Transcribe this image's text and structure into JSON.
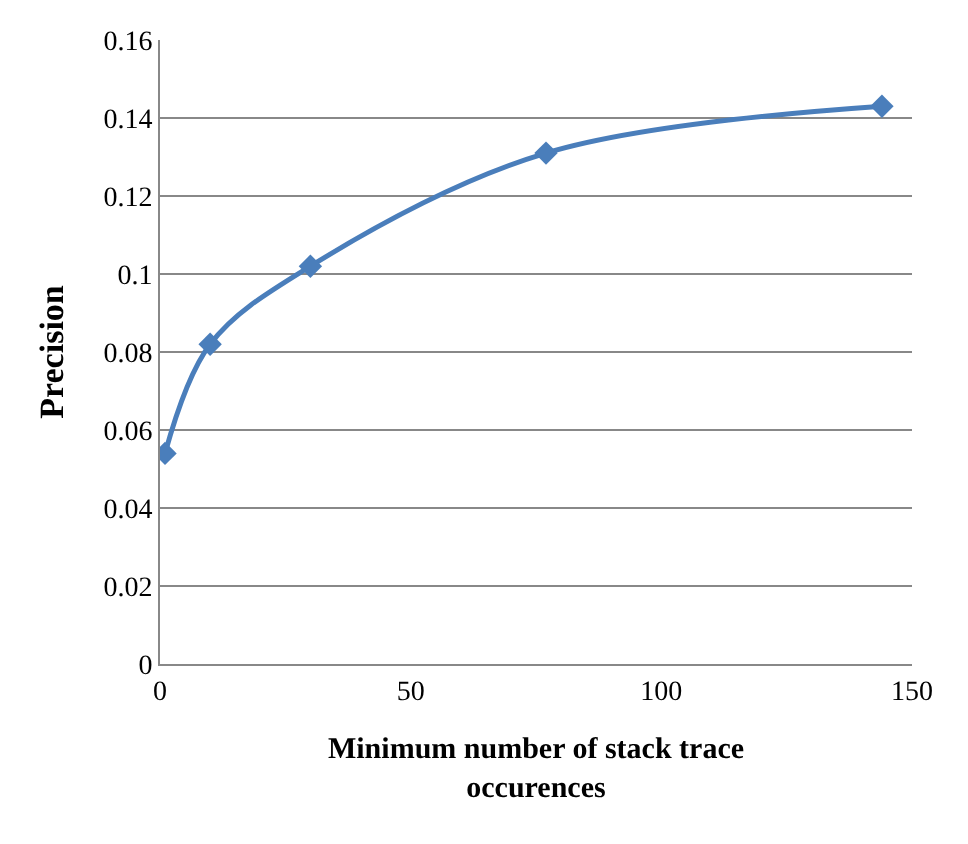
{
  "chart_data": {
    "type": "line",
    "xlabel": "Minimum number of stack trace occurences",
    "ylabel": "Precision",
    "x": [
      1,
      10,
      30,
      77,
      144
    ],
    "series": [
      {
        "color": "#4a7ebb",
        "values": [
          0.054,
          0.082,
          0.102,
          0.131,
          0.143
        ]
      }
    ],
    "xlim": [
      0,
      150
    ],
    "xticks": [
      0,
      50,
      100,
      150
    ],
    "ylim": [
      0,
      0.16
    ],
    "yticks": [
      0,
      0.02,
      0.04,
      0.06,
      0.08,
      0.1,
      0.12,
      0.14,
      0.16
    ],
    "grid": "y",
    "marker": "diamond",
    "line_style": "solid",
    "legend": false
  }
}
